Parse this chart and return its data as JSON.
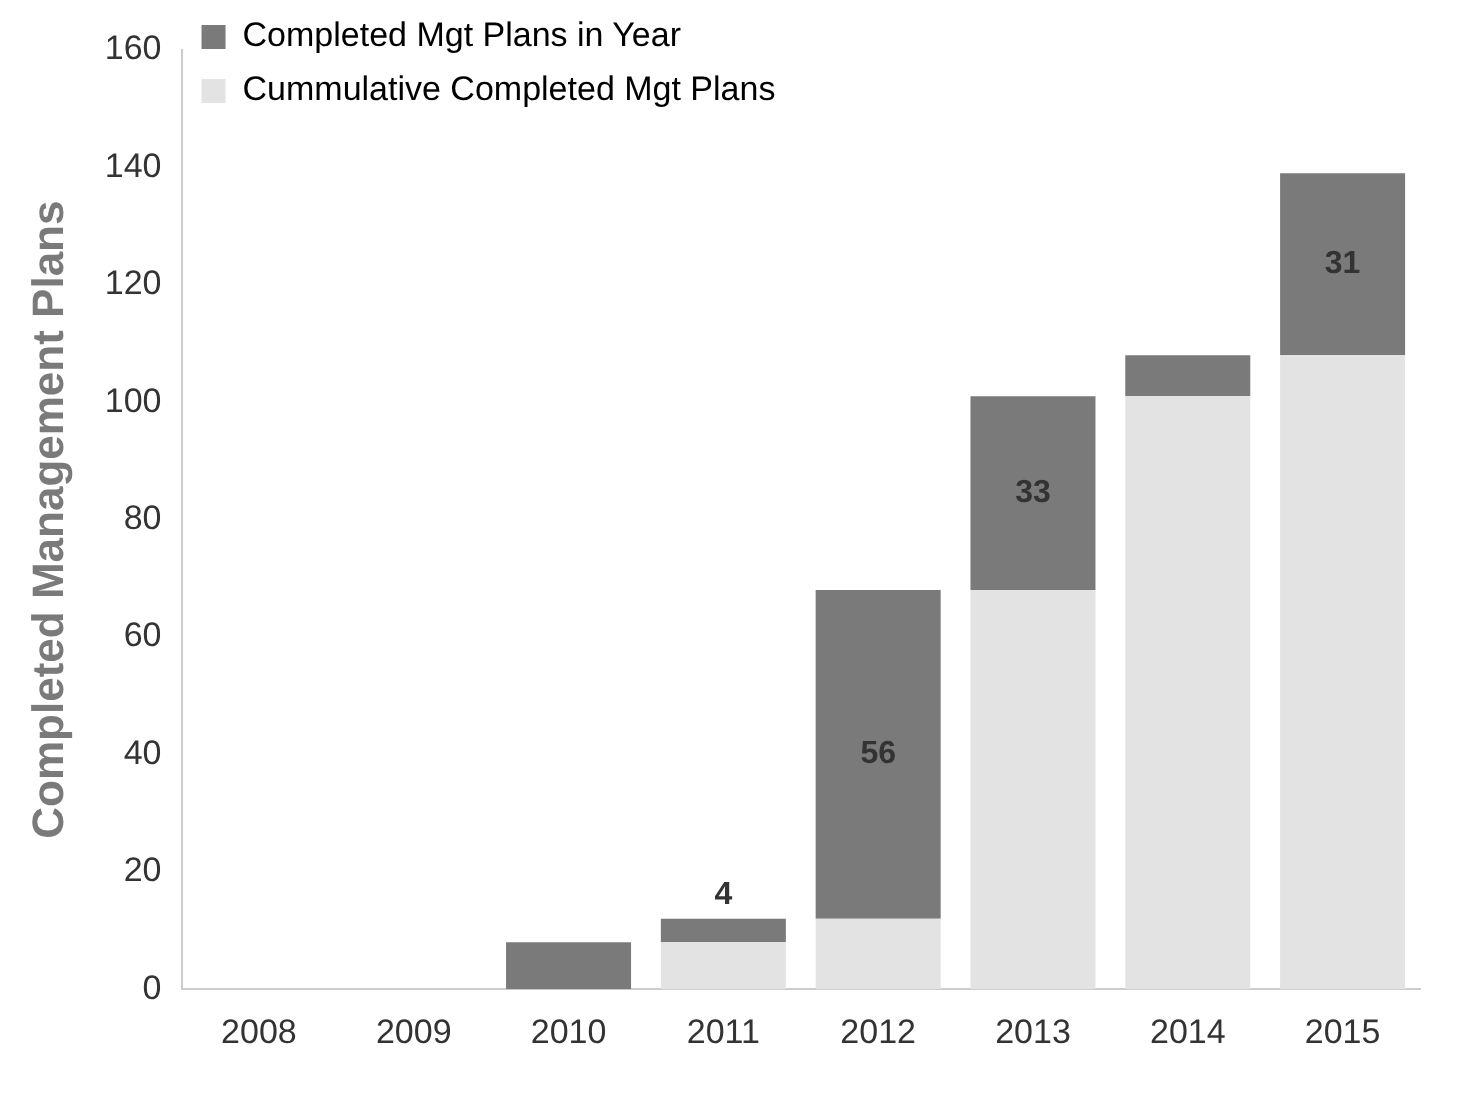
{
  "chart_data": {
    "type": "bar",
    "stacked": true,
    "ylabel": "Completed Management Plans",
    "categories": [
      "2008",
      "2009",
      "2010",
      "2011",
      "2012",
      "2013",
      "2014",
      "2015"
    ],
    "series": [
      {
        "name": "Cummulative Completed Mgt Plans",
        "color": "#e3e3e3",
        "values": [
          0,
          0,
          0,
          8,
          12,
          68,
          101,
          108
        ]
      },
      {
        "name": "Completed Mgt Plans in Year",
        "color": "#7a7a7a",
        "values": [
          0,
          0,
          8,
          4,
          56,
          33,
          7,
          31
        ],
        "value_labels": [
          null,
          null,
          null,
          "4",
          "56",
          "33",
          null,
          "31"
        ]
      }
    ],
    "ylim": [
      0,
      160
    ],
    "yticks": [
      0,
      20,
      40,
      60,
      80,
      100,
      120,
      140,
      160
    ],
    "grid": false,
    "legend": "top left"
  }
}
